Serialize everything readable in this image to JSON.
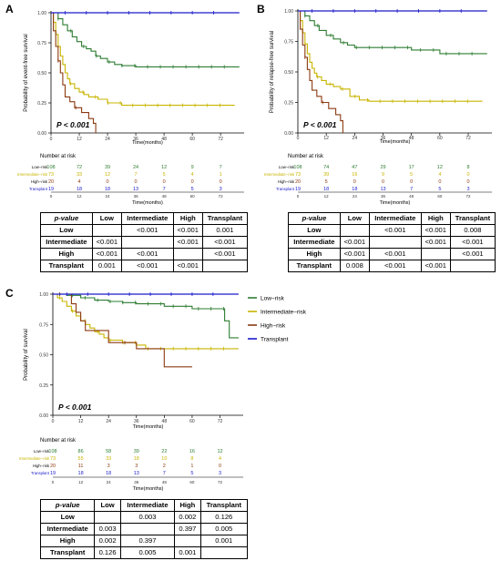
{
  "colors": {
    "Low-risk": "#2e7d32",
    "Intermediate-risk": "#c8b400",
    "High-risk": "#8b3a10",
    "Transplant": "#1a1acc"
  },
  "chart_data": [
    {
      "panel": "A",
      "type": "line",
      "step": true,
      "ylabel": "Probability of event-free survival",
      "xlabel": "Time(months)",
      "xticks": [
        0,
        12,
        24,
        36,
        48,
        60,
        72
      ],
      "xlim": [
        0,
        82
      ],
      "yticks": [
        "0.00",
        "0.25",
        "0.50",
        "0.75",
        "1.00"
      ],
      "ylim": [
        0,
        1
      ],
      "pvalue": "P < 0.001",
      "series": [
        {
          "name": "Low-risk",
          "x": [
            0,
            3,
            5,
            7,
            9,
            11,
            13,
            15,
            17,
            19,
            21,
            24,
            27,
            30,
            36,
            48,
            60,
            72,
            80
          ],
          "y": [
            1,
            0.95,
            0.9,
            0.85,
            0.8,
            0.76,
            0.72,
            0.7,
            0.68,
            0.64,
            0.62,
            0.59,
            0.57,
            0.56,
            0.55,
            0.55,
            0.55,
            0.55,
            0.55
          ]
        },
        {
          "name": "Intermediate-risk",
          "x": [
            0,
            1,
            2,
            3,
            4,
            5,
            6,
            7,
            8,
            10,
            12,
            14,
            16,
            20,
            24,
            30,
            36,
            48,
            60,
            72,
            78
          ],
          "y": [
            1,
            0.92,
            0.82,
            0.72,
            0.64,
            0.57,
            0.5,
            0.45,
            0.41,
            0.37,
            0.34,
            0.32,
            0.3,
            0.28,
            0.25,
            0.23,
            0.23,
            0.23,
            0.23,
            0.23,
            0.23
          ]
        },
        {
          "name": "High-risk",
          "x": [
            0,
            1,
            2,
            3,
            4,
            5,
            6,
            8,
            10,
            13,
            16,
            18,
            19
          ],
          "y": [
            1,
            0.85,
            0.72,
            0.6,
            0.5,
            0.4,
            0.3,
            0.26,
            0.21,
            0.17,
            0.12,
            0.08,
            0
          ]
        },
        {
          "name": "Transplant",
          "x": [
            0,
            80
          ],
          "y": [
            1,
            1
          ]
        }
      ],
      "risk_table": {
        "title": "Number at risk",
        "times": [
          0,
          12,
          24,
          36,
          48,
          60,
          72
        ],
        "rows": [
          {
            "label": "Low−risk",
            "values": [
              108,
              72,
              39,
              24,
              12,
              9,
              7
            ]
          },
          {
            "label": "Intermediate−risk",
            "values": [
              73,
              33,
              12,
              7,
              5,
              4,
              1
            ]
          },
          {
            "label": "High−risk",
            "values": [
              20,
              4,
              0,
              0,
              0,
              0,
              0
            ]
          },
          {
            "label": "Transplant",
            "values": [
              19,
              18,
              18,
              13,
              7,
              5,
              3
            ]
          }
        ]
      }
    },
    {
      "panel": "B",
      "type": "line",
      "step": true,
      "ylabel": "Probability of relapse-free survival",
      "xlabel": "Time(months)",
      "xticks": [
        0,
        12,
        24,
        36,
        48,
        60,
        72
      ],
      "xlim": [
        0,
        82
      ],
      "yticks": [
        "0.00",
        "0.25",
        "0.50",
        "0.75",
        "1.00"
      ],
      "ylim": [
        0,
        1
      ],
      "pvalue": "P < 0.001",
      "series": [
        {
          "name": "Low-risk",
          "x": [
            0,
            3,
            5,
            7,
            9,
            12,
            15,
            18,
            21,
            24,
            30,
            36,
            48,
            60,
            72,
            80
          ],
          "y": [
            1,
            0.96,
            0.92,
            0.88,
            0.84,
            0.8,
            0.77,
            0.74,
            0.72,
            0.7,
            0.7,
            0.7,
            0.68,
            0.65,
            0.65,
            0.65
          ]
        },
        {
          "name": "Intermediate-risk",
          "x": [
            0,
            1,
            2,
            3,
            4,
            5,
            6,
            7,
            8,
            10,
            12,
            15,
            18,
            22,
            26,
            30,
            36,
            48,
            60,
            72,
            78
          ],
          "y": [
            1,
            0.92,
            0.82,
            0.73,
            0.65,
            0.58,
            0.53,
            0.49,
            0.46,
            0.43,
            0.4,
            0.38,
            0.36,
            0.3,
            0.27,
            0.26,
            0.26,
            0.26,
            0.26,
            0.26,
            0.26
          ]
        },
        {
          "name": "High-risk",
          "x": [
            0,
            1,
            2,
            3,
            4,
            5,
            6,
            8,
            10,
            13,
            16,
            18,
            19
          ],
          "y": [
            1,
            0.85,
            0.72,
            0.62,
            0.52,
            0.43,
            0.35,
            0.3,
            0.25,
            0.2,
            0.15,
            0.1,
            0
          ]
        },
        {
          "name": "Transplant",
          "x": [
            0,
            80
          ],
          "y": [
            1,
            1
          ]
        }
      ],
      "risk_table": {
        "title": "Number at risk",
        "times": [
          0,
          12,
          24,
          36,
          48,
          60,
          72
        ],
        "rows": [
          {
            "label": "Low−risk",
            "values": [
              108,
              74,
              47,
              29,
              17,
              12,
              8
            ]
          },
          {
            "label": "Intermediate−risk",
            "values": [
              73,
              39,
              16,
              9,
              5,
              4,
              0
            ]
          },
          {
            "label": "High−risk",
            "values": [
              20,
              5,
              0,
              0,
              0,
              0,
              0
            ]
          },
          {
            "label": "Transplant",
            "values": [
              19,
              18,
              18,
              13,
              7,
              5,
              3
            ]
          }
        ]
      }
    },
    {
      "panel": "C",
      "type": "line",
      "step": true,
      "ylabel": "Probability of survival",
      "xlabel": "Time(months)",
      "xticks": [
        0,
        12,
        24,
        36,
        48,
        60,
        72
      ],
      "xlim": [
        0,
        82
      ],
      "yticks": [
        "0.00",
        "0.25",
        "0.50",
        "0.75",
        "1.00"
      ],
      "ylim": [
        0,
        1
      ],
      "pvalue": "P < 0.001",
      "legend": [
        "Low−risk",
        "Intermediate−risk",
        "High−risk",
        "Transplant"
      ],
      "series": [
        {
          "name": "Low-risk",
          "x": [
            0,
            6,
            12,
            18,
            24,
            30,
            36,
            48,
            60,
            72,
            74,
            76,
            80
          ],
          "y": [
            1,
            0.99,
            0.97,
            0.95,
            0.94,
            0.93,
            0.92,
            0.9,
            0.88,
            0.88,
            0.78,
            0.64,
            0.64
          ]
        },
        {
          "name": "Intermediate-risk",
          "x": [
            0,
            2,
            4,
            6,
            8,
            10,
            12,
            14,
            16,
            18,
            20,
            22,
            24,
            30,
            36,
            40,
            48,
            60,
            72,
            80
          ],
          "y": [
            1,
            0.97,
            0.94,
            0.9,
            0.86,
            0.82,
            0.78,
            0.75,
            0.72,
            0.69,
            0.67,
            0.64,
            0.62,
            0.6,
            0.58,
            0.55,
            0.55,
            0.55,
            0.55,
            0.55
          ]
        },
        {
          "name": "High-risk",
          "x": [
            0,
            8,
            10,
            12,
            14,
            24,
            36,
            48,
            60
          ],
          "y": [
            1,
            0.92,
            0.85,
            0.78,
            0.7,
            0.6,
            0.55,
            0.4,
            0.4
          ]
        },
        {
          "name": "Transplant",
          "x": [
            0,
            80
          ],
          "y": [
            1,
            1
          ]
        }
      ],
      "risk_table": {
        "title": "Number at risk",
        "times": [
          0,
          12,
          24,
          36,
          48,
          60,
          72
        ],
        "rows": [
          {
            "label": "Low−risk",
            "values": [
              108,
              86,
              58,
              39,
              22,
              16,
              12
            ]
          },
          {
            "label": "Intermediate−risk",
            "values": [
              73,
              55,
              33,
              18,
              10,
              8,
              4
            ]
          },
          {
            "label": "High−risk",
            "values": [
              20,
              11,
              3,
              3,
              2,
              1,
              0
            ]
          },
          {
            "label": "Transplant",
            "values": [
              19,
              18,
              18,
              13,
              7,
              5,
              3
            ]
          }
        ]
      }
    }
  ],
  "pvalue_tables": [
    {
      "panel": "A",
      "header": [
        "p-value",
        "Low",
        "Intermediate",
        "High",
        "Transplant"
      ],
      "rows": [
        [
          "Low",
          "",
          "<0.001",
          "<0.001",
          "0.001"
        ],
        [
          "Intermediate",
          "<0.001",
          "",
          "<0.001",
          "<0.001"
        ],
        [
          "High",
          "<0.001",
          "<0.001",
          "",
          "<0.001"
        ],
        [
          "Transplant",
          "0.001",
          "<0.001",
          "<0.001",
          ""
        ]
      ]
    },
    {
      "panel": "B",
      "header": [
        "p-value",
        "Low",
        "Intermediate",
        "High",
        "Transplant"
      ],
      "rows": [
        [
          "Low",
          "",
          "<0.001",
          "<0.001",
          "0.008"
        ],
        [
          "Intermediate",
          "<0.001",
          "",
          "<0.001",
          "<0.001"
        ],
        [
          "High",
          "<0.001",
          "<0.001",
          "",
          "<0.001"
        ],
        [
          "Transplant",
          "0.008",
          "<0.001",
          "<0.001",
          ""
        ]
      ]
    },
    {
      "panel": "C",
      "header": [
        "p-value",
        "Low",
        "Intermediate",
        "High",
        "Transplant"
      ],
      "rows": [
        [
          "Low",
          "",
          "0.003",
          "0.002",
          "0.126"
        ],
        [
          "Intermediate",
          "0.003",
          "",
          "0.397",
          "0.005"
        ],
        [
          "High",
          "0.002",
          "0.397",
          "",
          "0.001"
        ],
        [
          "Transplant",
          "0.126",
          "0.005",
          "0.001",
          ""
        ]
      ]
    }
  ]
}
